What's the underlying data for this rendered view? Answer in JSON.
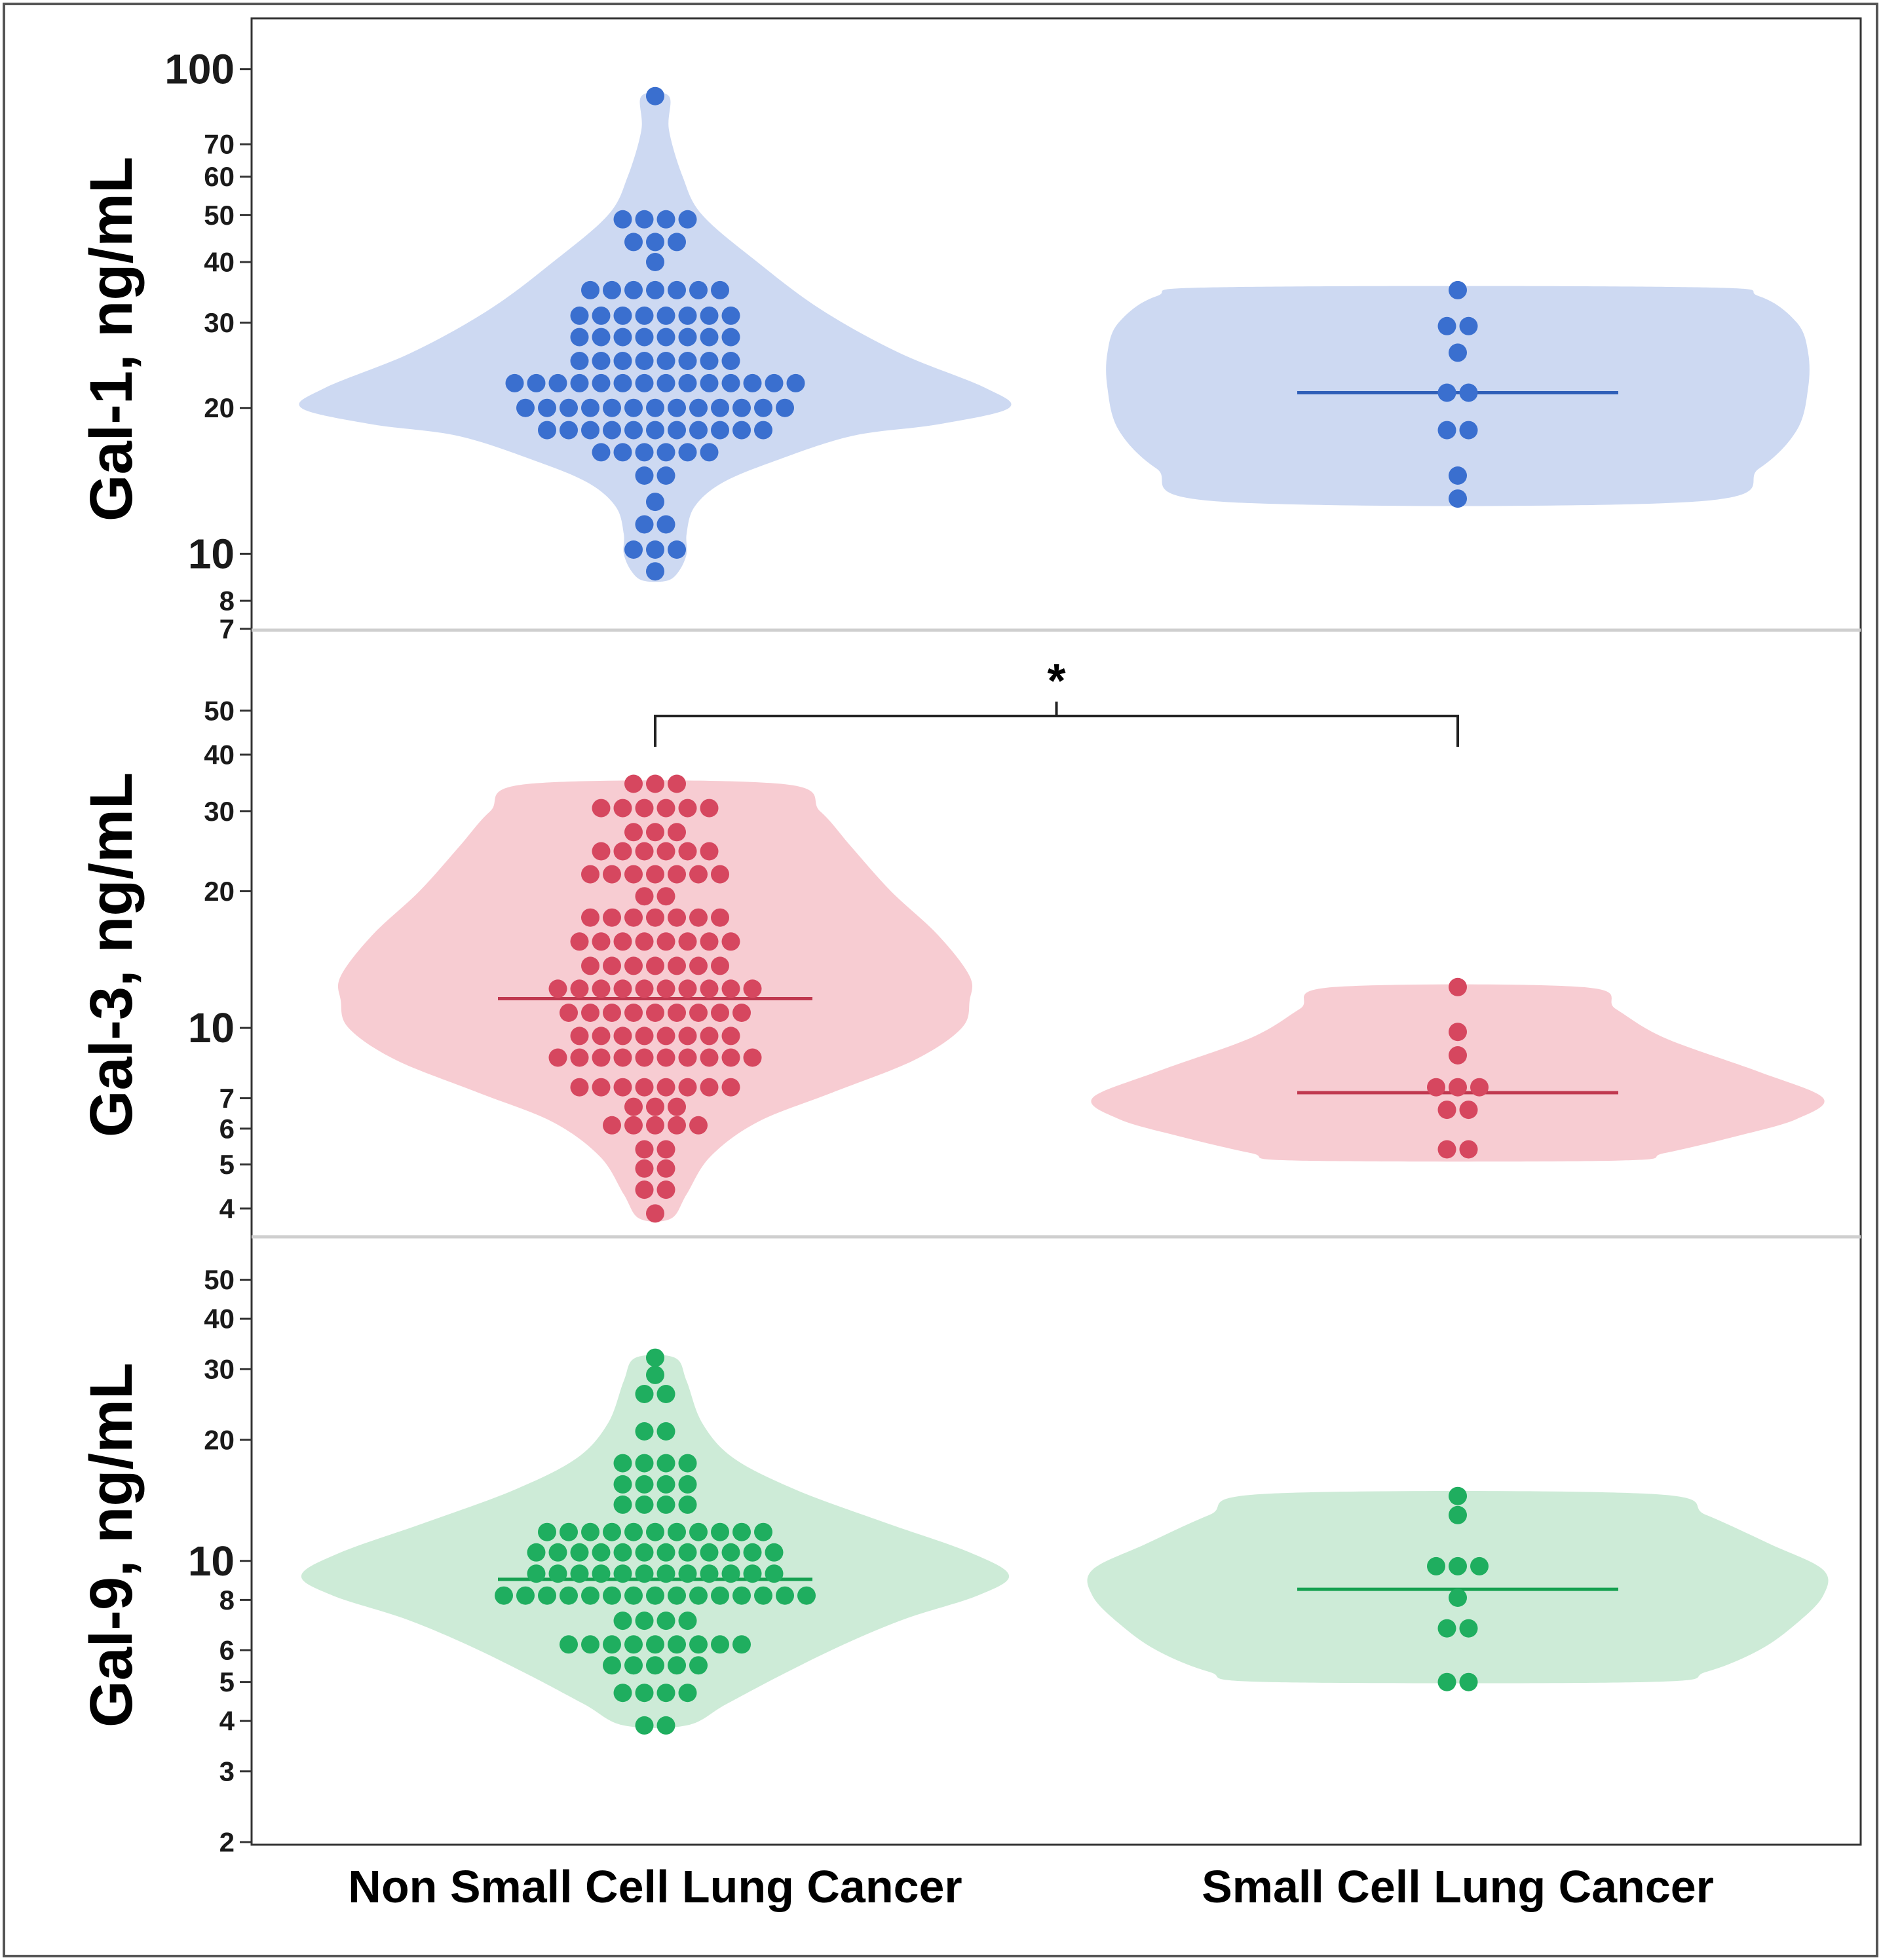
{
  "chart_data": [
    {
      "type": "scatter",
      "style": "violin-beeswarm",
      "ylabel": "Gal-1, ng/mL",
      "yscale": "log",
      "ylim": [
        7,
        110
      ],
      "yticks": [
        {
          "v": 100,
          "label": "100",
          "major": true
        },
        {
          "v": 70,
          "label": "70",
          "major": false
        },
        {
          "v": 60,
          "label": "60",
          "major": false
        },
        {
          "v": 50,
          "label": "50",
          "major": false
        },
        {
          "v": 40,
          "label": "40",
          "major": false
        },
        {
          "v": 30,
          "label": "30",
          "major": false
        },
        {
          "v": 20,
          "label": "20",
          "major": false
        },
        {
          "v": 10,
          "label": "10",
          "major": true
        },
        {
          "v": 8,
          "label": "8",
          "major": false
        },
        {
          "v": 7,
          "label": "7",
          "major": false
        }
      ],
      "colors": {
        "dot": "#3a6fcf",
        "violin": "#cdd9f2",
        "median": "#2f5fb8"
      },
      "groups": [
        {
          "category": "Non Small Cell Lung Cancer",
          "median": null,
          "rows": [
            [
              88,
              1
            ],
            [
              49,
              4
            ],
            [
              44,
              3
            ],
            [
              40,
              1
            ],
            [
              35,
              7
            ],
            [
              31,
              8
            ],
            [
              28,
              8
            ],
            [
              25,
              8
            ],
            [
              22.5,
              14
            ],
            [
              20,
              13
            ],
            [
              18,
              11
            ],
            [
              16.2,
              6
            ],
            [
              14.5,
              2
            ],
            [
              12.8,
              1
            ],
            [
              11.5,
              2
            ],
            [
              10.2,
              3
            ],
            [
              9.2,
              1
            ]
          ],
          "violin": [
            [
              88,
              0.035
            ],
            [
              75,
              0.035
            ],
            [
              60,
              0.07
            ],
            [
              50,
              0.12
            ],
            [
              40,
              0.26
            ],
            [
              32,
              0.42
            ],
            [
              26,
              0.62
            ],
            [
              22,
              0.84
            ],
            [
              20,
              0.9
            ],
            [
              18.5,
              0.72
            ],
            [
              17.5,
              0.5
            ],
            [
              15.5,
              0.3
            ],
            [
              14,
              0.17
            ],
            [
              12.5,
              0.1
            ],
            [
              11,
              0.08
            ],
            [
              10,
              0.08
            ],
            [
              9.2,
              0.06
            ],
            [
              8.8,
              0.03
            ]
          ]
        },
        {
          "category": "Small Cell Lung Cancer",
          "median": 21.5,
          "rows": [
            [
              35,
              1
            ],
            [
              29.5,
              2
            ],
            [
              26,
              1
            ],
            [
              21.5,
              2
            ],
            [
              18,
              2
            ],
            [
              14.5,
              1
            ],
            [
              13,
              1
            ]
          ],
          "violin": [
            [
              35.5,
              0.62
            ],
            [
              34,
              0.8
            ],
            [
              30,
              0.9
            ],
            [
              26,
              0.93
            ],
            [
              22,
              0.93
            ],
            [
              18,
              0.9
            ],
            [
              15,
              0.8
            ],
            [
              12.8,
              0.62
            ]
          ]
        }
      ]
    },
    {
      "type": "scatter",
      "style": "violin-beeswarm",
      "ylabel": "Gal-3, ng/mL",
      "yscale": "log",
      "ylim": [
        3.5,
        60
      ],
      "yticks": [
        {
          "v": 50,
          "label": "50",
          "major": false
        },
        {
          "v": 40,
          "label": "40",
          "major": false
        },
        {
          "v": 30,
          "label": "30",
          "major": false
        },
        {
          "v": 20,
          "label": "20",
          "major": false
        },
        {
          "v": 10,
          "label": "10",
          "major": true
        },
        {
          "v": 7,
          "label": "7",
          "major": false
        },
        {
          "v": 6,
          "label": "6",
          "major": false
        },
        {
          "v": 5,
          "label": "5",
          "major": false
        },
        {
          "v": 4,
          "label": "4",
          "major": false
        }
      ],
      "colors": {
        "dot": "#d6475f",
        "violin": "#f7ccd2",
        "median": "#c0384f"
      },
      "groups": [
        {
          "category": "Non Small Cell Lung Cancer",
          "median": 11.6,
          "rows": [
            [
              34.5,
              3
            ],
            [
              30.5,
              6
            ],
            [
              27,
              3
            ],
            [
              24.5,
              6
            ],
            [
              21.8,
              7
            ],
            [
              19.5,
              2
            ],
            [
              17.5,
              7
            ],
            [
              15.5,
              8
            ],
            [
              13.7,
              7
            ],
            [
              12.2,
              10
            ],
            [
              10.8,
              9
            ],
            [
              9.6,
              8
            ],
            [
              8.6,
              10
            ],
            [
              7.4,
              8
            ],
            [
              6.7,
              3
            ],
            [
              6.1,
              5
            ],
            [
              5.4,
              2
            ],
            [
              4.9,
              2
            ],
            [
              4.4,
              2
            ],
            [
              3.9,
              1
            ]
          ],
          "violin": [
            [
              34.5,
              0.32
            ],
            [
              30,
              0.42
            ],
            [
              25,
              0.5
            ],
            [
              20,
              0.6
            ],
            [
              16,
              0.72
            ],
            [
              13,
              0.8
            ],
            [
              11.5,
              0.8
            ],
            [
              10,
              0.78
            ],
            [
              8.5,
              0.66
            ],
            [
              7.2,
              0.45
            ],
            [
              6.2,
              0.26
            ],
            [
              5.2,
              0.14
            ],
            [
              4.3,
              0.08
            ],
            [
              3.8,
              0.04
            ]
          ]
        },
        {
          "category": "Small Cell Lung Cancer",
          "median": 7.2,
          "rows": [
            [
              12.3,
              1
            ],
            [
              9.8,
              1
            ],
            [
              8.7,
              1
            ],
            [
              7.4,
              3
            ],
            [
              6.6,
              2
            ],
            [
              5.4,
              2
            ]
          ],
          "violin": [
            [
              12.3,
              0.33
            ],
            [
              11,
              0.42
            ],
            [
              9.5,
              0.55
            ],
            [
              8,
              0.8
            ],
            [
              7,
              0.97
            ],
            [
              6.3,
              0.9
            ],
            [
              5.8,
              0.75
            ],
            [
              5.3,
              0.55
            ],
            [
              5.1,
              0.42
            ]
          ]
        }
      ]
    },
    {
      "type": "scatter",
      "style": "violin-beeswarm",
      "ylabel": "Gal-9, ng/mL",
      "xlabel": "",
      "yscale": "log",
      "ylim": [
        2,
        60
      ],
      "yticks": [
        {
          "v": 50,
          "label": "50",
          "major": false
        },
        {
          "v": 40,
          "label": "40",
          "major": false
        },
        {
          "v": 30,
          "label": "30",
          "major": false
        },
        {
          "v": 20,
          "label": "20",
          "major": false
        },
        {
          "v": 10,
          "label": "10",
          "major": true
        },
        {
          "v": 8,
          "label": "8",
          "major": false
        },
        {
          "v": 6,
          "label": "6",
          "major": false
        },
        {
          "v": 5,
          "label": "5",
          "major": false
        },
        {
          "v": 4,
          "label": "4",
          "major": false
        },
        {
          "v": 3,
          "label": "3",
          "major": false
        },
        {
          "v": 2,
          "label": "2",
          "major": false
        }
      ],
      "colors": {
        "dot": "#1fae5f",
        "violin": "#cdebd7",
        "median": "#15a050"
      },
      "groups": [
        {
          "category": "Non Small Cell Lung Cancer",
          "median": 9,
          "rows": [
            [
              32,
              1
            ],
            [
              29,
              1
            ],
            [
              26,
              2
            ],
            [
              21,
              2
            ],
            [
              17.5,
              4
            ],
            [
              15.5,
              4
            ],
            [
              13.8,
              4
            ],
            [
              11.8,
              11
            ],
            [
              10.5,
              12
            ],
            [
              9.3,
              12
            ],
            [
              8.2,
              15
            ],
            [
              7.1,
              4
            ],
            [
              6.2,
              9
            ],
            [
              5.5,
              5
            ],
            [
              4.7,
              4
            ],
            [
              3.9,
              2
            ]
          ],
          "violin": [
            [
              32,
              0.05
            ],
            [
              28,
              0.08
            ],
            [
              22,
              0.12
            ],
            [
              18,
              0.2
            ],
            [
              15,
              0.36
            ],
            [
              12.5,
              0.58
            ],
            [
              10.5,
              0.8
            ],
            [
              9.2,
              0.9
            ],
            [
              8.2,
              0.82
            ],
            [
              7.2,
              0.64
            ],
            [
              6.2,
              0.48
            ],
            [
              5.2,
              0.32
            ],
            [
              4.4,
              0.18
            ],
            [
              3.9,
              0.08
            ]
          ]
        },
        {
          "category": "Small Cell Lung Cancer",
          "median": 8.5,
          "rows": [
            [
              14.5,
              1
            ],
            [
              13,
              1
            ],
            [
              9.7,
              3
            ],
            [
              8.1,
              1
            ],
            [
              6.8,
              2
            ],
            [
              5,
              2
            ]
          ],
          "violin": [
            [
              14.7,
              0.5
            ],
            [
              13,
              0.66
            ],
            [
              11,
              0.83
            ],
            [
              9.5,
              0.97
            ],
            [
              8.2,
              0.97
            ],
            [
              7,
              0.9
            ],
            [
              6,
              0.8
            ],
            [
              5.3,
              0.66
            ],
            [
              5,
              0.5
            ]
          ]
        }
      ]
    }
  ],
  "x_categories": [
    "Non Small Cell Lung Cancer",
    "Small Cell Lung Cancer"
  ],
  "annotations": [
    {
      "text": "*",
      "between": [
        "Non Small Cell Lung Cancer",
        "Small Cell Lung Cancer"
      ],
      "panel": 1,
      "type": "significance-bracket"
    }
  ]
}
